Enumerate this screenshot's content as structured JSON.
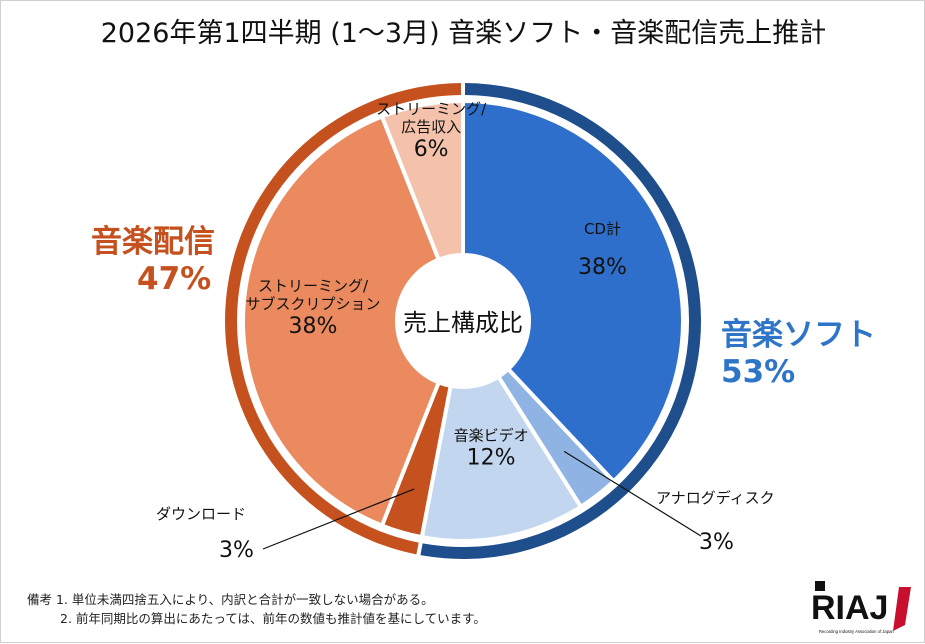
{
  "title": "2026年第1四半期 (1～3月) 音楽ソフト・音楽配信売上推計",
  "center_label": "売上構成比",
  "groups": {
    "soft": {
      "name": "音楽ソフト",
      "pct": "53%",
      "color": "#1f4e8c",
      "text_color": "#2e75c8"
    },
    "digital": {
      "name": "音楽配信",
      "pct": "47%",
      "color": "#c5511f",
      "text_color": "#c5511f"
    }
  },
  "chart_data": {
    "type": "pie",
    "title": "2026年第1四半期 (1～3月) 音楽ソフト・音楽配信売上推計",
    "center_label": "売上構成比",
    "unit": "%",
    "slices": [
      {
        "name": "CD計",
        "value": 38,
        "label": "38%",
        "color": "#2e6fcc",
        "group": "音楽ソフト"
      },
      {
        "name": "アナログディスク",
        "value": 3,
        "label": "3%",
        "color": "#8fb4e3",
        "group": "音楽ソフト"
      },
      {
        "name": "音楽ビデオ",
        "value": 12,
        "label": "12%",
        "color": "#c3d6ef",
        "group": "音楽ソフト"
      },
      {
        "name": "ダウンロード",
        "value": 3,
        "label": "3%",
        "color": "#c5511f",
        "group": "音楽配信"
      },
      {
        "name": "ストリーミング/サブスクリプション",
        "value": 38,
        "label": "38%",
        "color": "#eb8a5e",
        "group": "音楽配信"
      },
      {
        "name": "ストリーミング/広告収入",
        "value": 6,
        "label": "6%",
        "color": "#f4c2aa",
        "group": "音楽配信"
      }
    ],
    "slice_label_lines": [
      [
        "CD計"
      ],
      [
        "アナログディスク"
      ],
      [
        "音楽ビデオ"
      ],
      [
        "ダウンロード"
      ],
      [
        "ストリーミング/",
        "サブスクリプション"
      ],
      [
        "ストリーミング/",
        "広告収入"
      ]
    ],
    "outer_rings": [
      {
        "name": "音楽ソフト",
        "value": 53,
        "label": "53%"
      },
      {
        "name": "音楽配信",
        "value": 47,
        "label": "47%"
      }
    ]
  },
  "notes": [
    "備考 1. 単位未満四捨五入により、内訳と合計が一致しない場合がある。",
    "2. 前年同期比の算出にあたっては、前年の数値も推計値を基にしています。"
  ],
  "logo": {
    "text": "RIAJ",
    "subtext": "Recording Industry Association of Japan"
  }
}
